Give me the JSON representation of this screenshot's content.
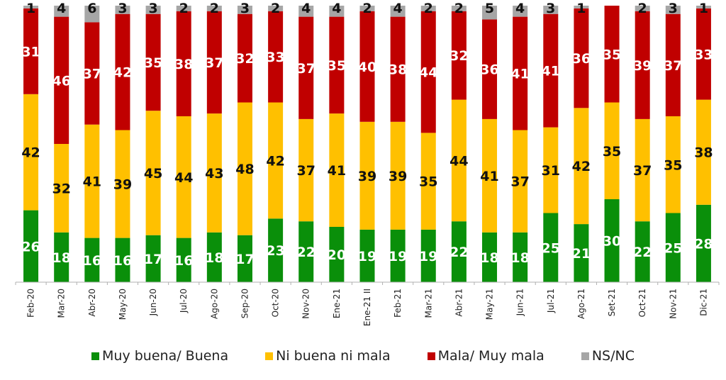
{
  "chart_data": {
    "type": "bar",
    "stacked": true,
    "title": "",
    "xlabel": "",
    "ylabel": "",
    "ylim": [
      0,
      100
    ],
    "grid": false,
    "legend_position": "bottom",
    "categories": [
      "Feb-20",
      "Mar-20",
      "Abr-20",
      "May-20",
      "Jun-20",
      "Jul-20",
      "Ago-20",
      "Sep-20",
      "Oct-20",
      "Nov-20",
      "Ene-21",
      "Ene-21 II",
      "Feb-21",
      "Mar-21",
      "Abr-21",
      "May-21",
      "Jun-21",
      "Jul-21",
      "Ago-21",
      "Set-21",
      "Oct-21",
      "Nov-21",
      "Dic-21"
    ],
    "series": [
      {
        "name": "Muy buena/ Buena",
        "color": "#0a8f0a",
        "label_color": "#ffffff",
        "values": [
          26,
          18,
          16,
          16,
          17,
          16,
          18,
          17,
          23,
          22,
          20,
          19,
          19,
          19,
          22,
          18,
          18,
          25,
          21,
          30,
          22,
          25,
          28
        ]
      },
      {
        "name": "Ni buena ni mala",
        "color": "#ffc000",
        "label_color": "#111111",
        "values": [
          42,
          32,
          41,
          39,
          45,
          44,
          43,
          48,
          42,
          37,
          41,
          39,
          39,
          35,
          44,
          41,
          37,
          31,
          42,
          35,
          37,
          35,
          38
        ]
      },
      {
        "name": "Mala/ Muy mala",
        "color": "#c00000",
        "label_color": "#ffffff",
        "values": [
          31,
          46,
          37,
          42,
          35,
          38,
          37,
          32,
          33,
          37,
          35,
          40,
          38,
          44,
          32,
          36,
          41,
          41,
          36,
          35,
          39,
          37,
          33
        ]
      },
      {
        "name": "NS/NC",
        "color": "#a6a6a6",
        "label_color": "#111111",
        "values": [
          1,
          4,
          6,
          3,
          3,
          2,
          2,
          3,
          2,
          4,
          4,
          2,
          4,
          2,
          2,
          5,
          4,
          3,
          1,
          0,
          2,
          3,
          1
        ]
      }
    ]
  }
}
